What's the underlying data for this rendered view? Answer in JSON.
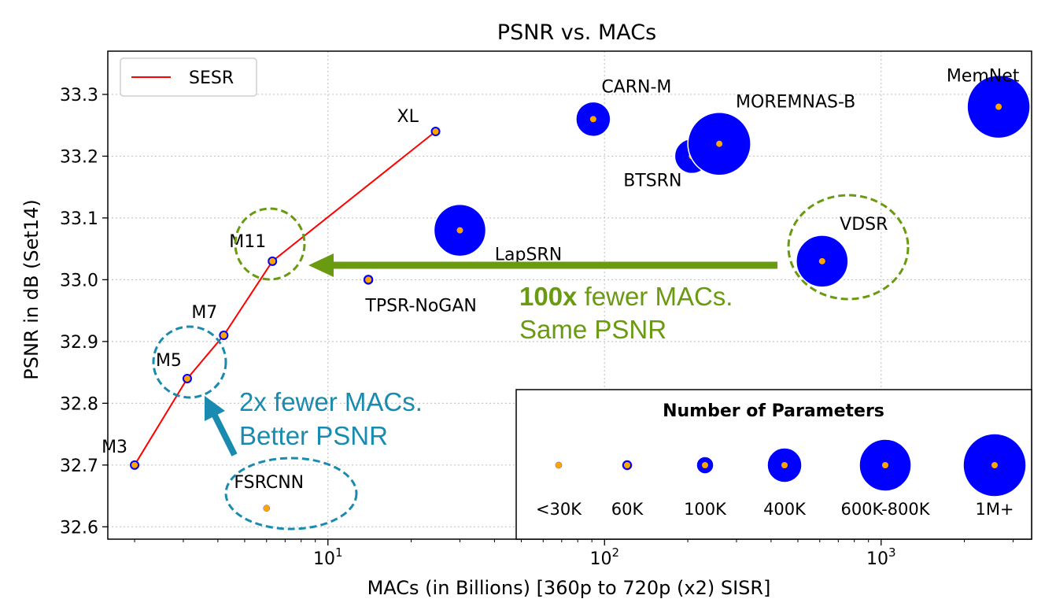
{
  "chart_data": {
    "type": "scatter",
    "title": "PSNR vs. MACs",
    "xlabel": "MACs (in Billions) [360p to 720p (x2) SISR]",
    "ylabel": "PSNR in dB (Set14)",
    "xscale": "log",
    "xlim": [
      1.6,
      3500
    ],
    "ylim": [
      32.58,
      33.37
    ],
    "grid": true,
    "x_ticks": [
      {
        "value": 10,
        "base": "10",
        "exp": "1"
      },
      {
        "value": 100,
        "base": "10",
        "exp": "2"
      },
      {
        "value": 1000,
        "base": "10",
        "exp": "3"
      }
    ],
    "y_ticks": [
      "32.6",
      "32.7",
      "32.8",
      "32.9",
      "33.0",
      "33.1",
      "33.2",
      "33.3"
    ],
    "legend": {
      "placement": "top-left",
      "label": "SESR",
      "color": "#ff0000"
    },
    "sesr_series": {
      "name": "SESR",
      "color": "#ff0000",
      "points": [
        {
          "label": "M3",
          "x": 2.0,
          "y": 32.7
        },
        {
          "label": "M5",
          "x": 3.1,
          "y": 32.84
        },
        {
          "label": "M7",
          "x": 4.2,
          "y": 32.91
        },
        {
          "label": "M11",
          "x": 6.3,
          "y": 33.03
        },
        {
          "label": "XL",
          "x": 24.5,
          "y": 33.24
        }
      ]
    },
    "other_models": [
      {
        "label": "FSRCNN",
        "x": 6.0,
        "y": 32.63,
        "params_class": "<30K"
      },
      {
        "label": "TPSR-NoGAN",
        "x": 14.0,
        "y": 33.0,
        "params_class": "60K"
      },
      {
        "label": "LapSRN",
        "x": 30.0,
        "y": 33.08,
        "params_class": "600K-800K"
      },
      {
        "label": "CARN-M",
        "x": 91.0,
        "y": 33.26,
        "params_class": "400K"
      },
      {
        "label": "BTSRN",
        "x": 207.0,
        "y": 33.2,
        "params_class": "400K"
      },
      {
        "label": "MOREMNAS-B",
        "x": 260.0,
        "y": 33.22,
        "params_class": "1M+"
      },
      {
        "label": "VDSR",
        "x": 612.0,
        "y": 33.03,
        "params_class": "600K-800K"
      },
      {
        "label": "MemNet",
        "x": 2660.0,
        "y": 33.28,
        "params_class": "1M+"
      }
    ],
    "marker_colors": {
      "bubble": "#0000ff",
      "center": "#ffa500",
      "edge": "#ffffff"
    },
    "size_legend": {
      "title": "Number of Parameters",
      "placement": "bottom-right",
      "items": [
        "<30K",
        "60K",
        "100K",
        "400K",
        "600K-800K",
        "1M+"
      ]
    },
    "annotations": {
      "green": {
        "bold": "100x",
        "line1_rest": " fewer MACs.",
        "line2": "Same PSNR",
        "color": "#6a9a10"
      },
      "blue": {
        "line1": "2x fewer MACs.",
        "line2": "Better PSNR",
        "color": "#1a8bb0"
      }
    }
  }
}
